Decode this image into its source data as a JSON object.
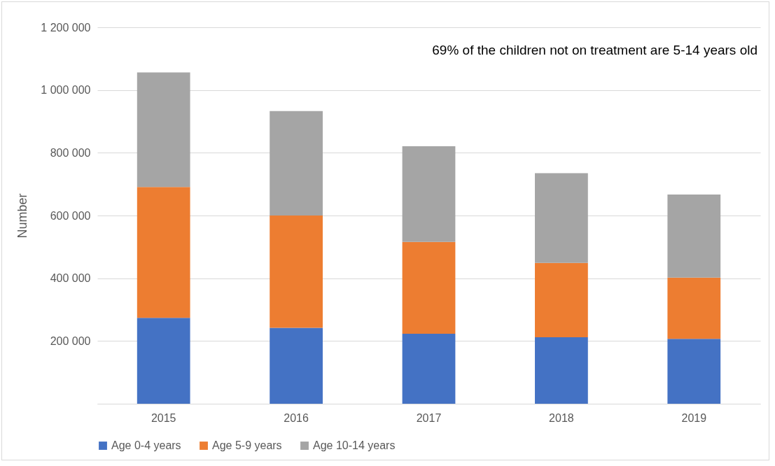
{
  "chart_data": {
    "type": "bar",
    "stacked": true,
    "ylabel": "Number",
    "annotations": [
      "69% of the children not on treatment are 5-14 years old"
    ],
    "categories": [
      "2015",
      "2016",
      "2017",
      "2018",
      "2019"
    ],
    "series": [
      {
        "name": "Age 0-4 years",
        "color": "#4472c4",
        "values": [
          274000,
          242000,
          223000,
          212000,
          207000
        ]
      },
      {
        "name": "Age 5-9 years",
        "color": "#ed7d31",
        "values": [
          417000,
          358000,
          293000,
          237000,
          195000
        ]
      },
      {
        "name": "Age 10-14 years",
        "color": "#a5a5a5",
        "values": [
          365000,
          333000,
          305000,
          286000,
          265000
        ]
      }
    ],
    "ylim": [
      0,
      1200000
    ],
    "yticks": [
      {
        "value": 0,
        "label": null
      },
      {
        "value": 200000,
        "label": "200 000"
      },
      {
        "value": 400000,
        "label": "400 000"
      },
      {
        "value": 600000,
        "label": "600 000"
      },
      {
        "value": 800000,
        "label": "800 000"
      },
      {
        "value": 1000000,
        "label": "1 000 000"
      },
      {
        "value": 1200000,
        "label": "1 200 000"
      }
    ],
    "grid": "y",
    "legend": "bottom"
  }
}
